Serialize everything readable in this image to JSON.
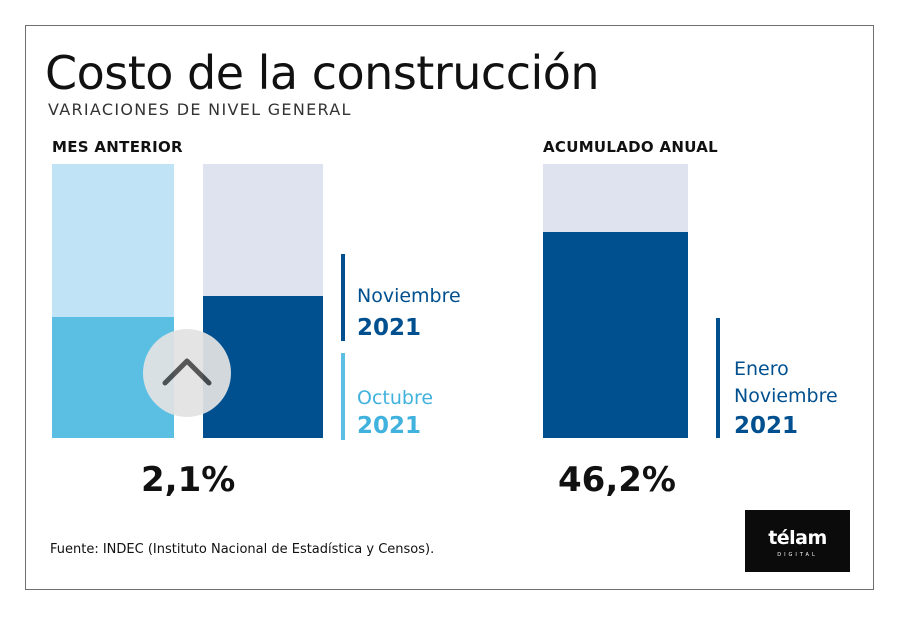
{
  "chart_data": {
    "type": "bar",
    "title": "Costo de la construcción",
    "subtitle": "VARIACIONES DE NIVEL GENERAL",
    "panels": [
      {
        "label": "MES ANTERIOR",
        "value_label": "2,1%",
        "series": [
          {
            "name": "Octubre 2021",
            "month": "Octubre",
            "year": "2021",
            "value": 44,
            "color": "#5bbfe4",
            "track_color": "#c0e4f5"
          },
          {
            "name": "Noviembre 2021",
            "month": "Noviembre",
            "year": "2021",
            "value": 52,
            "color": "#00508f",
            "track_color": "#dfe3ef"
          }
        ]
      },
      {
        "label": "ACUMULADO ANUAL",
        "value_label": "46,2%",
        "series": [
          {
            "name": "Enero Noviembre 2021",
            "month": "Enero",
            "month2": "Noviembre",
            "year": "2021",
            "value": 75,
            "color": "#00508f",
            "track_color": "#dfe3ef"
          }
        ]
      }
    ],
    "ylim": [
      0,
      100
    ],
    "source": "Fuente: INDEC (Instituto Nacional de Estadística y Censos)."
  },
  "logo": {
    "word": "télam",
    "sub": "DIGITAL"
  },
  "controls": {
    "scroll_icon": "chevron-up-icon"
  }
}
